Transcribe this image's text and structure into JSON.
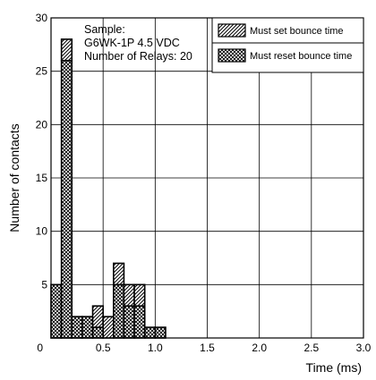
{
  "chart_data": {
    "type": "bar",
    "stacked": true,
    "xlabel": "Time (ms)",
    "ylabel": "Number of contacts",
    "xlim": [
      0,
      3.0
    ],
    "ylim": [
      0,
      30
    ],
    "xticks": [
      "0",
      "0.5",
      "1.0",
      "1.5",
      "2.0",
      "2.5",
      "3.0"
    ],
    "yticks": [
      "0",
      "5",
      "10",
      "15",
      "20",
      "25",
      "30"
    ],
    "grid": true,
    "bin_width": 0.1,
    "bin_starts": [
      0.0,
      0.1,
      0.2,
      0.3,
      0.4,
      0.5,
      0.6,
      0.7,
      0.8,
      0.9,
      1.0
    ],
    "series": [
      {
        "name": "Must reset bounce time",
        "pattern": "crosshatch",
        "values": [
          5,
          26,
          2,
          2,
          1,
          0,
          5,
          3,
          3,
          1,
          1
        ]
      },
      {
        "name": "Must set bounce time",
        "pattern": "diagonal",
        "values": [
          0,
          2,
          0,
          0,
          2,
          2,
          2,
          2,
          2,
          0,
          0
        ]
      }
    ],
    "annotation": [
      "Sample:",
      "G6WK-1P 4.5 VDC",
      "Number of Relays: 20"
    ],
    "legend_position": "top-right"
  }
}
